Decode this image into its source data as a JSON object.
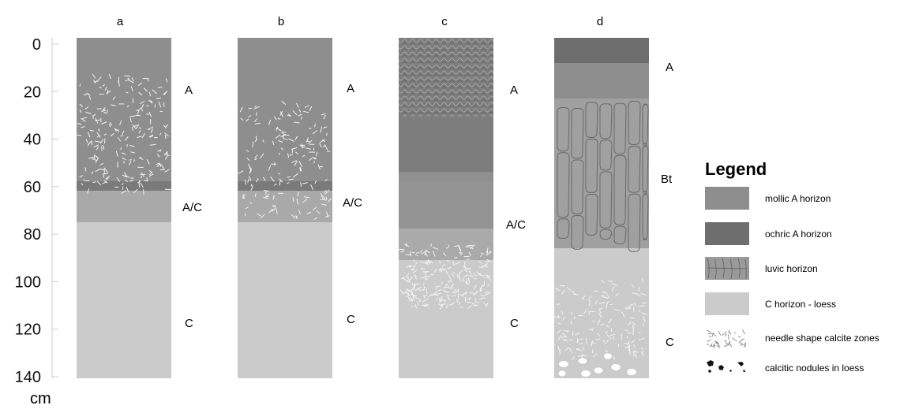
{
  "axis": {
    "ticks": [
      "0",
      "20",
      "40",
      "60",
      "80",
      "100",
      "120",
      "140"
    ],
    "unit": "cm"
  },
  "profiles": [
    {
      "id": "a",
      "label": "a",
      "horizons": [
        "A",
        "A/C",
        "C"
      ]
    },
    {
      "id": "b",
      "label": "b",
      "horizons": [
        "A",
        "A/C",
        "C"
      ]
    },
    {
      "id": "c",
      "label": "c",
      "horizons": [
        "A",
        "A/C",
        "C"
      ]
    },
    {
      "id": "d",
      "label": "d",
      "horizons": [
        "A",
        "Bt",
        "C"
      ]
    }
  ],
  "legend": {
    "title": "Legend",
    "items": [
      {
        "key": "mollic",
        "label": "mollic A horizon",
        "color": "#8c8c8c"
      },
      {
        "key": "ochric",
        "label": "ochric A horizon",
        "color": "#6f6f6f"
      },
      {
        "key": "luvic",
        "label": "luvic horizon",
        "color": "#9a9a9a"
      },
      {
        "key": "loess",
        "label": "C horizon - loess",
        "color": "#cbcbcb"
      },
      {
        "key": "needles",
        "label": "needle shape calcite zones"
      },
      {
        "key": "nodules",
        "label": "calcitic nodules in loess"
      }
    ]
  },
  "colors": {
    "mollic": "#8e8e8e",
    "ochric": "#6e6e6e",
    "transition": "#a9a9a9",
    "loess": "#cbcbcb",
    "text": "#111111"
  }
}
